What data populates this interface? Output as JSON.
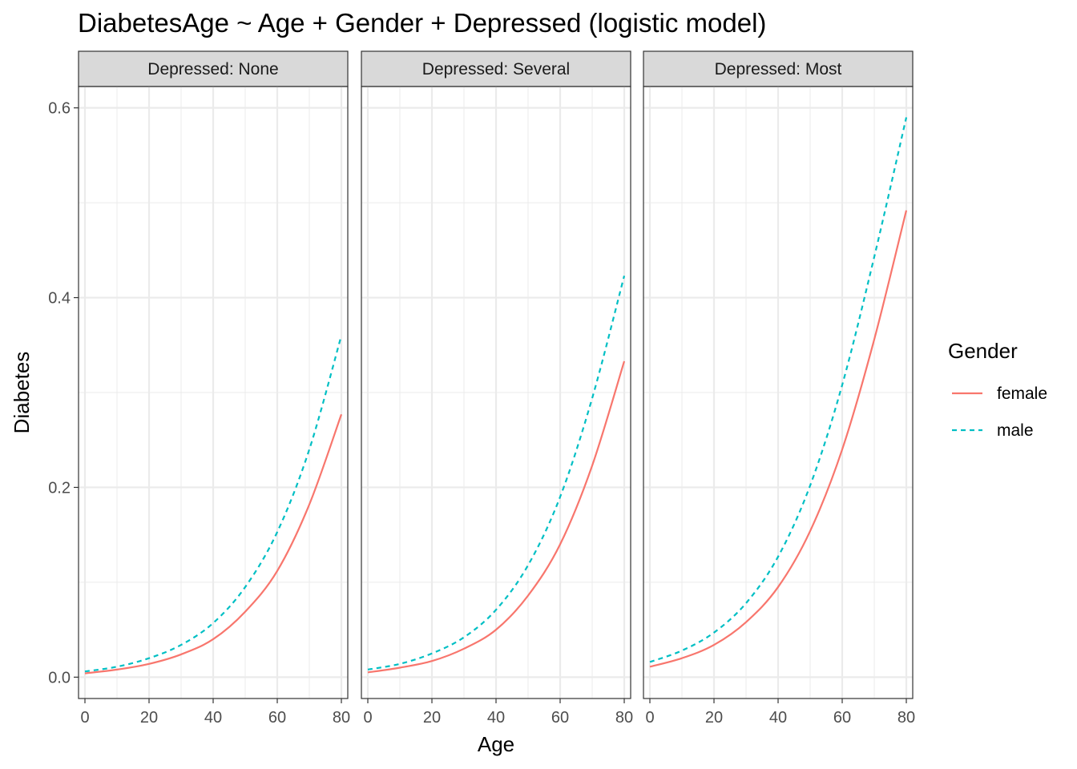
{
  "chart_data": {
    "type": "line",
    "title": "DiabetesAge ~ Age + Gender + Depressed (logistic model)",
    "xlabel": "Age",
    "ylabel": "Diabetes",
    "xlim": [
      -2,
      82
    ],
    "ylim": [
      -0.0225,
      0.6225
    ],
    "x_ticks": [
      0,
      20,
      40,
      60,
      80
    ],
    "x_tick_labels": [
      "0",
      "20",
      "40",
      "60",
      "80"
    ],
    "y_ticks": [
      0.0,
      0.2,
      0.4,
      0.6
    ],
    "y_tick_labels": [
      "0.0",
      "0.2",
      "0.4",
      "0.6"
    ],
    "grid": true,
    "legend": {
      "title": "Gender",
      "position": "right",
      "entries": [
        {
          "label": "female",
          "color": "#F8766D",
          "linetype": "solid"
        },
        {
          "label": "male",
          "color": "#00BFC4",
          "linetype": "dashed"
        }
      ]
    },
    "panels": [
      {
        "strip": "Depressed: None",
        "series": [
          {
            "name": "female",
            "x": [
              0,
              10,
              20,
              30,
              40,
              50,
              60,
              70,
              80
            ],
            "values": [
              0.004,
              0.008,
              0.014,
              0.024,
              0.04,
              0.069,
              0.112,
              0.182,
              0.277
            ]
          },
          {
            "name": "male",
            "x": [
              0,
              10,
              20,
              30,
              40,
              50,
              60,
              70,
              80
            ],
            "values": [
              0.006,
              0.011,
              0.02,
              0.034,
              0.057,
              0.095,
              0.153,
              0.24,
              0.36
            ]
          }
        ]
      },
      {
        "strip": "Depressed: Several",
        "series": [
          {
            "name": "female",
            "x": [
              0,
              10,
              20,
              30,
              40,
              50,
              60,
              70,
              80
            ],
            "values": [
              0.005,
              0.01,
              0.017,
              0.03,
              0.05,
              0.086,
              0.14,
              0.223,
              0.333
            ]
          },
          {
            "name": "male",
            "x": [
              0,
              10,
              20,
              30,
              40,
              50,
              60,
              70,
              80
            ],
            "values": [
              0.008,
              0.014,
              0.025,
              0.042,
              0.071,
              0.118,
              0.19,
              0.294,
              0.423
            ]
          }
        ]
      },
      {
        "strip": "Depressed: Most",
        "series": [
          {
            "name": "female",
            "x": [
              0,
              10,
              20,
              30,
              40,
              50,
              60,
              70,
              80
            ],
            "values": [
              0.011,
              0.02,
              0.034,
              0.058,
              0.095,
              0.154,
              0.24,
              0.356,
              0.492
            ]
          },
          {
            "name": "male",
            "x": [
              0,
              10,
              20,
              30,
              40,
              50,
              60,
              70,
              80
            ],
            "values": [
              0.016,
              0.028,
              0.047,
              0.078,
              0.127,
              0.202,
              0.308,
              0.443,
              0.59
            ]
          }
        ]
      }
    ]
  }
}
